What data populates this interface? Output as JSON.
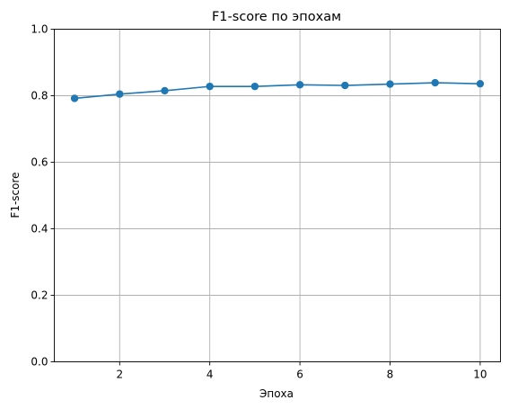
{
  "chart_data": {
    "type": "line",
    "title": "F1-score по эпохам",
    "xlabel": "Эпоха",
    "ylabel": "F1-score",
    "xlim": [
      0.55,
      10.45
    ],
    "ylim": [
      0.0,
      1.0
    ],
    "xticks": [
      2,
      4,
      6,
      8,
      10
    ],
    "yticks": [
      0.0,
      0.2,
      0.4,
      0.6,
      0.8,
      1.0
    ],
    "xtick_labels": [
      "2",
      "4",
      "6",
      "8",
      "10"
    ],
    "ytick_labels": [
      "0.0",
      "0.2",
      "0.4",
      "0.6",
      "0.8",
      "1.0"
    ],
    "grid": true,
    "legend": false,
    "series": [
      {
        "color": "#1f77b4",
        "marker": "circle",
        "x": [
          1,
          2,
          3,
          4,
          5,
          6,
          7,
          8,
          9,
          10
        ],
        "y": [
          0.792,
          0.805,
          0.815,
          0.828,
          0.828,
          0.833,
          0.831,
          0.835,
          0.839,
          0.836
        ]
      }
    ]
  }
}
